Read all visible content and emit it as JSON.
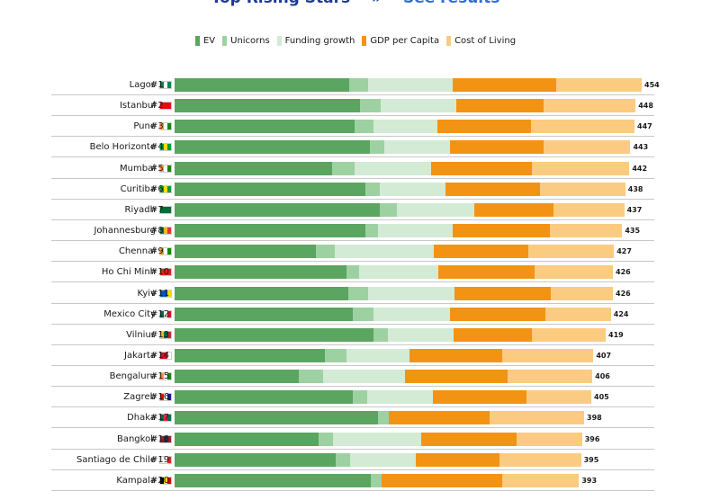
{
  "header": {
    "title": "Top Rising Stars",
    "separator": "»",
    "link": "See results"
  },
  "colors": {
    "EV": "#5aa55f",
    "Unicorns": "#9ed1a1",
    "Funding growth": "#d3ebd4",
    "GDP per Capita": "#f39314",
    "Cost of Living": "#fbcb81"
  },
  "chart_data": {
    "type": "bar",
    "orientation": "horizontal",
    "stacked": true,
    "title": "",
    "legend_position": "top",
    "categories": [
      "Lagos",
      "Istanbul",
      "Pune",
      "Belo Horizonte",
      "Mumbai",
      "Curitiba",
      "Riyadh",
      "Johannesburg",
      "Chennai",
      "Ho Chi Minh",
      "Kyiv",
      "Mexico City",
      "Vilnius",
      "Jakarta",
      "Bengaluru",
      "Zagreb",
      "Dhaka",
      "Bangkok",
      "Santiago de Chile",
      "Kampala"
    ],
    "ranks": [
      "#1",
      "#2",
      "#3",
      "#4",
      "#5",
      "#6",
      "#7",
      "#8",
      "#9",
      "#10",
      "#11",
      "#12",
      "#13",
      "#14",
      "#15",
      "#16",
      "#17",
      "#18",
      "#19",
      "#20"
    ],
    "flags": [
      [
        "#008751",
        "#ffffff",
        "#008751"
      ],
      [
        "#e30a17",
        "#e30a17",
        "#e30a17"
      ],
      [
        "#ff9933",
        "#ffffff",
        "#138808"
      ],
      [
        "#009c3b",
        "#ffdf00",
        "#009c3b"
      ],
      [
        "#ff9933",
        "#ffffff",
        "#138808"
      ],
      [
        "#009c3b",
        "#ffdf00",
        "#009c3b"
      ],
      [
        "#006c35",
        "#006c35",
        "#006c35"
      ],
      [
        "#007a4d",
        "#ffb612",
        "#de3831"
      ],
      [
        "#ff9933",
        "#ffffff",
        "#138808"
      ],
      [
        "#da251d",
        "#da251d",
        "#da251d"
      ],
      [
        "#0057b7",
        "#0057b7",
        "#ffd700"
      ],
      [
        "#006847",
        "#ffffff",
        "#ce1126"
      ],
      [
        "#fdb913",
        "#006a44",
        "#c1272d"
      ],
      [
        "#ce1126",
        "#ce1126",
        "#ffffff"
      ],
      [
        "#ff9933",
        "#ffffff",
        "#138808"
      ],
      [
        "#ff0000",
        "#ffffff",
        "#171796"
      ],
      [
        "#006a4e",
        "#f42a41",
        "#006a4e"
      ],
      [
        "#a51931",
        "#2d2a4a",
        "#a51931"
      ],
      [
        "#ffffff",
        "#ffffff",
        "#d52b1e"
      ],
      [
        "#000000",
        "#fcdc04",
        "#d90000"
      ]
    ],
    "totals": [
      454,
      448,
      447,
      443,
      442,
      438,
      437,
      435,
      427,
      426,
      426,
      424,
      419,
      407,
      406,
      405,
      398,
      396,
      395,
      393
    ],
    "series": [
      {
        "name": "EV",
        "values": [
          170,
          180,
          175,
          190,
          153,
          185,
          199,
          185,
          137,
          167,
          169,
          173,
          193,
          146,
          121,
          173,
          198,
          140,
          157,
          191
        ]
      },
      {
        "name": "Unicorns",
        "values": [
          18,
          20,
          18,
          14,
          22,
          14,
          17,
          13,
          19,
          12,
          19,
          20,
          14,
          21,
          23,
          14,
          10,
          14,
          14,
          10
        ]
      },
      {
        "name": "Funding growth",
        "values": [
          82,
          74,
          62,
          64,
          74,
          64,
          75,
          72,
          96,
          77,
          84,
          75,
          64,
          61,
          80,
          64,
          0,
          86,
          63,
          0
        ]
      },
      {
        "name": "GDP per Capita",
        "values": [
          101,
          85,
          91,
          91,
          98,
          92,
          77,
          95,
          92,
          94,
          94,
          92,
          76,
          90,
          100,
          91,
          98,
          92,
          82,
          117
        ]
      },
      {
        "name": "Cost of Living",
        "values": [
          83,
          89,
          101,
          84,
          95,
          83,
          69,
          70,
          83,
          76,
          60,
          64,
          72,
          89,
          82,
          63,
          92,
          64,
          79,
          75
        ]
      }
    ]
  }
}
